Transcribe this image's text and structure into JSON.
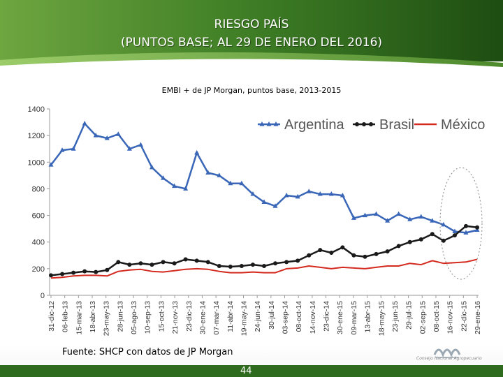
{
  "slide": {
    "title_line1": "RIESGO PAÍS",
    "title_line2": "(PUNTOS BASE; AL 29 DE ENERO DEL 2016)",
    "subtitle": "EMBI + de JP Morgan, puntos  base, 2013-2015",
    "source": "Fuente: SHCP con datos de JP Morgan",
    "page_number": "44",
    "logo_text": "Consejo Nacional Agropecuario"
  },
  "colors": {
    "banner_dark": "#1e4d12",
    "banner_mid": "#3c7a22",
    "banner_light": "#7fb34a"
  },
  "chart_data": {
    "type": "line",
    "title": "",
    "xlabel": "",
    "ylabel": "",
    "ylim": [
      0,
      1400
    ],
    "yticks": [
      0,
      200,
      400,
      600,
      800,
      1000,
      1200,
      1400
    ],
    "grid": false,
    "legend_position": "top-right",
    "x_ticks": [
      "31-dic-12",
      "06-feb-13",
      "15-mar-13",
      "18-abr-13",
      "23-may-13",
      "28-jun-13",
      "05-ago-13",
      "10-sep-13",
      "15-oct-13",
      "21-nov-13",
      "23-dic-13",
      "30-ene-14",
      "07-mar-14",
      "11-abr-14",
      "19-may-14",
      "24-jun-14",
      "30-jul-14",
      "03-sep-14",
      "08-oct-14",
      "14-nov-14",
      "23-dic-14",
      "30-ene-15",
      "09-mar-15",
      "13-abr-15",
      "18-may-15",
      "23-jun-15",
      "29-jul-15",
      "02-sep-15",
      "08-oct-15",
      "16-nov-15",
      "22-dic-15",
      "29-ene-16"
    ],
    "series": [
      {
        "name": "Argentina",
        "color": "#3a66b8",
        "marker": "triangle",
        "values": [
          980,
          1090,
          1100,
          1290,
          1200,
          1180,
          1210,
          1100,
          1130,
          960,
          880,
          820,
          800,
          1070,
          920,
          900,
          840,
          840,
          760,
          700,
          670,
          750,
          740,
          780,
          760,
          760,
          750,
          580,
          600,
          610,
          560,
          610,
          570,
          590,
          560,
          530,
          480,
          470,
          490
        ]
      },
      {
        "name": "Brasil",
        "color": "#1a1a1a",
        "marker": "circle",
        "values": [
          150,
          160,
          170,
          180,
          175,
          190,
          250,
          230,
          240,
          230,
          250,
          240,
          270,
          260,
          250,
          220,
          215,
          220,
          230,
          220,
          240,
          250,
          260,
          300,
          340,
          320,
          360,
          300,
          290,
          310,
          330,
          370,
          400,
          420,
          460,
          410,
          450,
          520,
          510
        ]
      },
      {
        "name": "México",
        "color": "#d42a1f",
        "marker": "none",
        "values": [
          130,
          135,
          145,
          150,
          150,
          145,
          180,
          190,
          195,
          180,
          175,
          185,
          195,
          200,
          195,
          180,
          170,
          170,
          175,
          170,
          170,
          200,
          205,
          220,
          210,
          200,
          210,
          205,
          200,
          210,
          220,
          220,
          240,
          230,
          260,
          240,
          245,
          250,
          270
        ]
      }
    ]
  }
}
